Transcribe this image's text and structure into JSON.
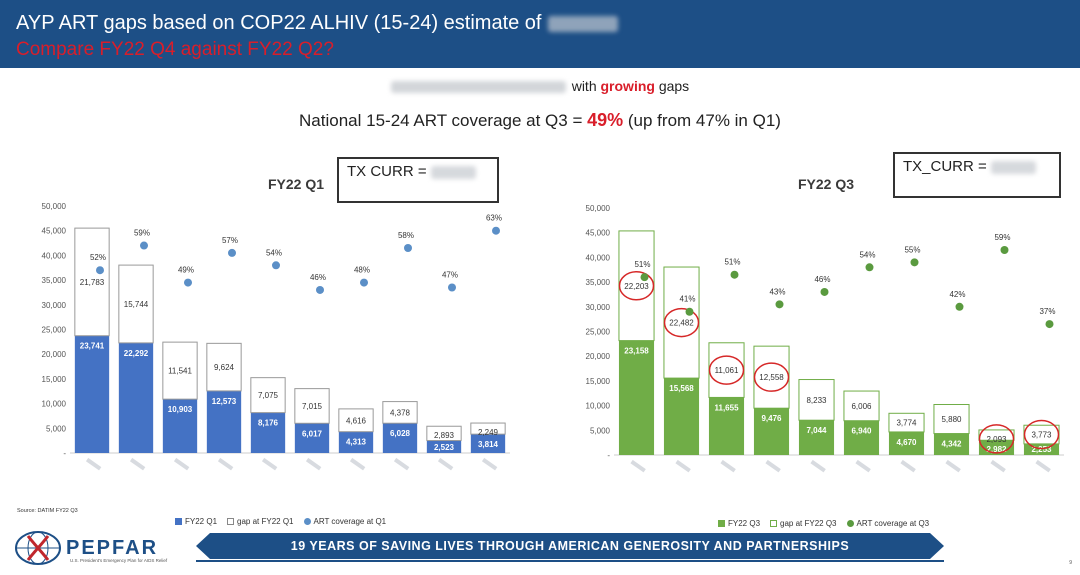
{
  "header": {
    "title_line1": "AYP ART gaps based on COP22 ALHIV (15-24) estimate of",
    "title_line2": "Compare FY22 Q4 against FY22 Q2?"
  },
  "subtitle": {
    "suffix_before": "with",
    "growing": "growing",
    "suffix_after": "gaps"
  },
  "coverage": {
    "prefix": "National 15-24 ART coverage at Q3 =",
    "value": "49%",
    "suffix": "(up from 47% in Q1)"
  },
  "tx_left": {
    "label": "TX  CURR ="
  },
  "tx_right": {
    "label": "TX_CURR ="
  },
  "source": "Source: DATIM FY22 Q3",
  "banner": "19 YEARS OF SAVING LIVES THROUGH AMERICAN GENEROSITY AND PARTNERSHIPS",
  "logo": {
    "name": "PEPFAR",
    "sub": "U.S. President's Emergency Plan for AIDS Relief"
  },
  "page_number": "9",
  "colors": {
    "blue": "#4472c4",
    "green": "#70ad47",
    "dot_blue": "#5b8fc7",
    "dot_green": "#5a9a3f",
    "circle": "#d62828",
    "header": "#1d4f86"
  },
  "chart_data": [
    {
      "type": "bar",
      "title": "FY22 Q1",
      "stacked": true,
      "ylim": [
        0,
        50000
      ],
      "yticks": [
        "50,000",
        "45,000",
        "40,000",
        "35,000",
        "30,000",
        "25,000",
        "20,000",
        "15,000",
        "10,000",
        "5,000",
        "-"
      ],
      "categories": [
        "",
        "",
        "",
        "",
        "",
        "",
        "",
        "",
        "",
        ""
      ],
      "series": [
        {
          "name": "FY22 Q1",
          "values": [
            23741,
            22292,
            10903,
            12573,
            8176,
            6017,
            4313,
            6028,
            2523,
            3814
          ],
          "labels": [
            "23,741",
            "22,292",
            "10,903",
            "12,573",
            "8,176",
            "6,017",
            "4,313",
            "6,028",
            "2,523",
            "3,814"
          ]
        },
        {
          "name": "gap at FY22 Q1",
          "values": [
            21783,
            15744,
            11541,
            9624,
            7075,
            7015,
            4616,
            4378,
            2893,
            2249
          ],
          "labels": [
            "21,783",
            "15,744",
            "11,541",
            "9,624",
            "7,075",
            "7,015",
            "4,616",
            "4,378",
            "2,893",
            "2,249"
          ]
        }
      ],
      "coverage": {
        "name": "ART coverage at Q1",
        "values": [
          37000,
          42000,
          34500,
          40500,
          38000,
          33000,
          34500,
          41500,
          33500,
          45000
        ],
        "labels": [
          "52%",
          "59%",
          "49%",
          "57%",
          "54%",
          "46%",
          "48%",
          "58%",
          "47%",
          "63%"
        ]
      }
    },
    {
      "type": "bar",
      "title": "FY22 Q3",
      "stacked": true,
      "ylim": [
        0,
        50000
      ],
      "yticks": [
        "50,000",
        "45,000",
        "40,000",
        "35,000",
        "30,000",
        "25,000",
        "20,000",
        "15,000",
        "10,000",
        "5,000",
        "-"
      ],
      "categories": [
        "",
        "",
        "",
        "",
        "",
        "",
        "",
        "",
        "",
        ""
      ],
      "series": [
        {
          "name": "FY22 Q3",
          "values": [
            23158,
            15568,
            11655,
            9476,
            7044,
            6940,
            4670,
            4342,
            2982,
            2253
          ],
          "labels": [
            "23,158",
            "15,568",
            "11,655",
            "9,476",
            "7,044",
            "6,940",
            "4,670",
            "4,342",
            "2,982",
            "2,253"
          ]
        },
        {
          "name": "gap at FY22 Q3",
          "values": [
            22203,
            22482,
            11061,
            12558,
            8233,
            6006,
            3774,
            5880,
            2093,
            3773
          ],
          "labels": [
            "22,203",
            "22,482",
            "11,061",
            "12,558",
            "8,233",
            "6,006",
            "3,774",
            "5,880",
            "2,093",
            "3,773"
          ]
        }
      ],
      "coverage": {
        "name": "ART coverage at Q3",
        "values": [
          36000,
          29000,
          36500,
          30500,
          33000,
          38000,
          39000,
          30000,
          41500,
          26500
        ],
        "labels": [
          "51%",
          "41%",
          "51%",
          "43%",
          "46%",
          "54%",
          "55%",
          "42%",
          "59%",
          "37%"
        ]
      },
      "circled_gap_bars": [
        0,
        1,
        2,
        3,
        8,
        9
      ]
    }
  ]
}
